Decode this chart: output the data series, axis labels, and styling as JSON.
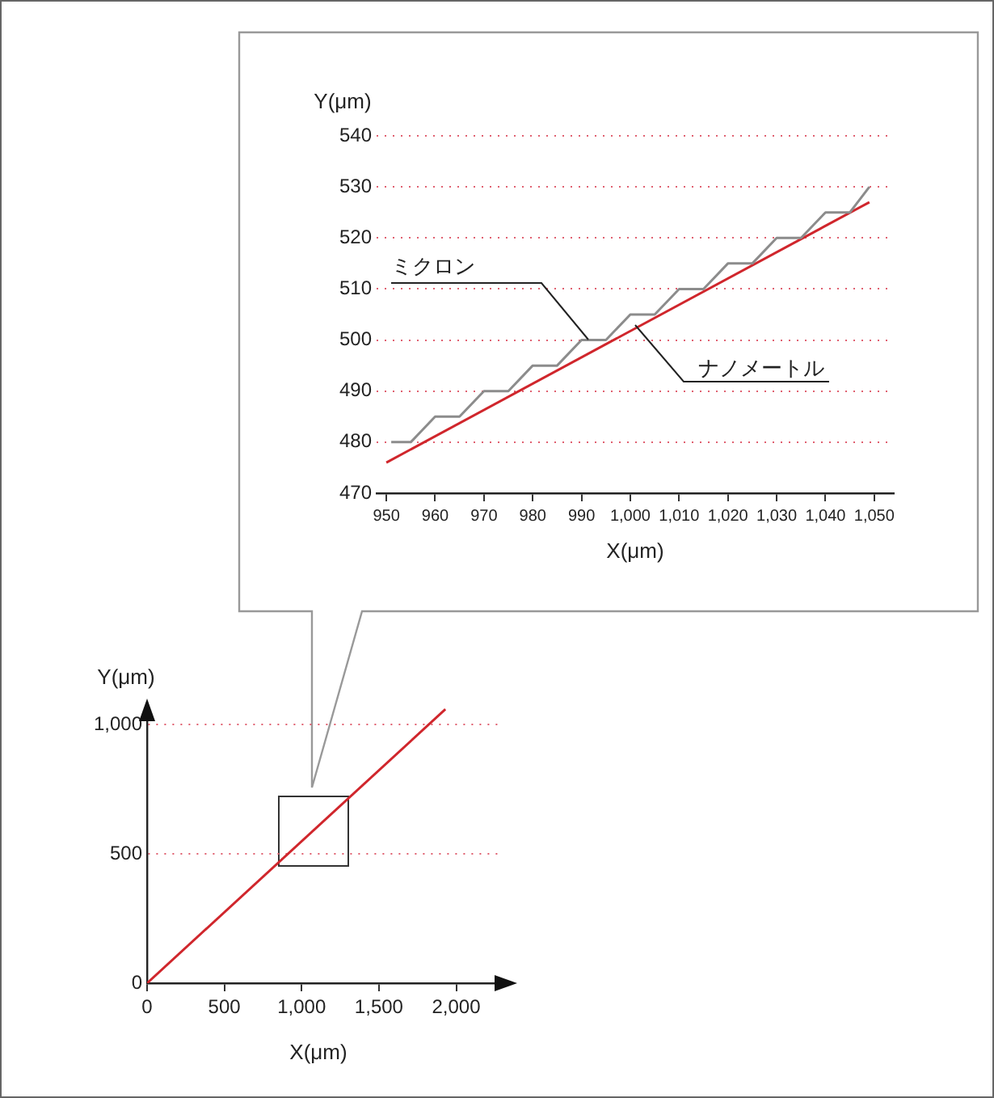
{
  "chart_data": [
    {
      "type": "line",
      "xlabel": "X(μm)",
      "ylabel": "Y(μm)",
      "xlim": [
        948,
        1054
      ],
      "ylim": [
        470,
        540
      ],
      "xticks": [
        950,
        960,
        970,
        980,
        990,
        {
          "value": 1000,
          "label": "1,000"
        },
        {
          "value": 1010,
          "label": "1,010"
        },
        {
          "value": 1020,
          "label": "1,020"
        },
        {
          "value": 1030,
          "label": "1,030"
        },
        {
          "value": 1040,
          "label": "1,040"
        },
        {
          "value": 1050,
          "label": "1,050"
        }
      ],
      "yticks": [
        470,
        480,
        490,
        500,
        510,
        520,
        530,
        540
      ],
      "grid": "y",
      "legend": false,
      "marker": "none",
      "line_style": "solid",
      "series": [
        {
          "name": "ミクロン",
          "color": "#8c8c8c",
          "x": [
            951,
            955,
            960,
            965,
            970,
            975,
            980,
            985,
            990,
            995,
            1000,
            1005,
            1010,
            1015,
            1020,
            1025,
            1030,
            1035,
            1040,
            1045,
            1049
          ],
          "values": [
            480,
            480,
            485,
            485,
            490,
            490,
            495,
            495,
            500,
            500,
            505,
            505,
            510,
            510,
            515,
            515,
            520,
            520,
            525,
            525,
            530
          ]
        },
        {
          "name": "ナノメートル",
          "color": "#d0262c",
          "x": [
            950,
            1049
          ],
          "values": [
            476,
            527
          ]
        }
      ]
    },
    {
      "type": "line",
      "xlabel": "X(μm)",
      "ylabel": "Y(μm)",
      "xlim": [
        0,
        2290
      ],
      "ylim": [
        0,
        1070
      ],
      "xticks": [
        0,
        500,
        {
          "value": 1000,
          "label": "1,000"
        },
        {
          "value": 1500,
          "label": "1,500"
        },
        {
          "value": 2000,
          "label": "2,000"
        }
      ],
      "yticks": [
        0,
        500,
        {
          "value": 1000,
          "label": "1,000"
        }
      ],
      "grid": "y",
      "legend": false,
      "marker": "none",
      "line_style": "solid",
      "series": [
        {
          "color": "#d0262c",
          "x": [
            0,
            1930
          ],
          "values": [
            0,
            1060
          ]
        }
      ]
    }
  ]
}
